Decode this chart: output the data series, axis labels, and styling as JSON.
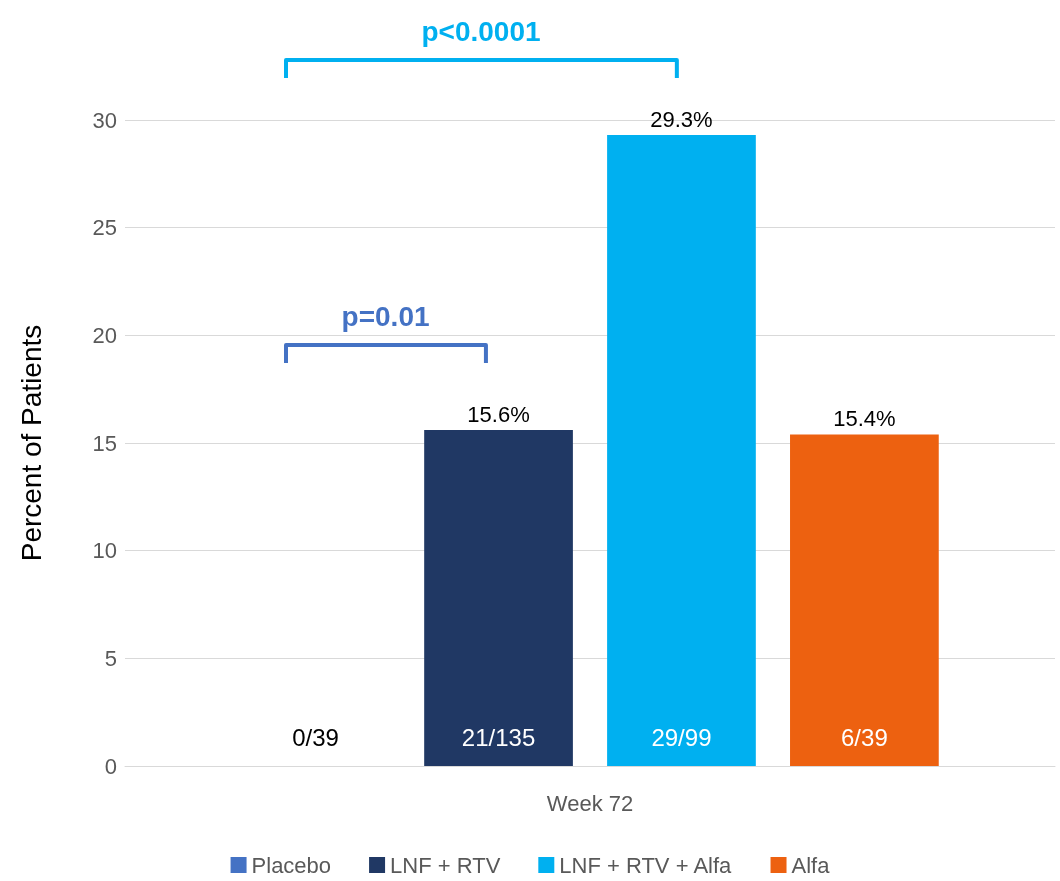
{
  "chart_data": {
    "type": "bar",
    "ylabel": "Percent of Patients",
    "categories": [
      "Week 72"
    ],
    "series": [
      {
        "name": "Placebo",
        "color": "#4472c4",
        "values": [
          0
        ],
        "value_labels": [
          null
        ]
      },
      {
        "name": "LNF + RTV",
        "color": "#203864",
        "values": [
          15.6
        ],
        "value_labels": [
          "15.6%"
        ]
      },
      {
        "name": "LNF + RTV + Alfa",
        "color": "#00b0f0",
        "values": [
          29.3
        ],
        "value_labels": [
          "29.3%"
        ]
      },
      {
        "name": "Alfa",
        "color": "#ed6110",
        "values": [
          15.4
        ],
        "value_labels": [
          "15.4%"
        ]
      }
    ],
    "ylim": [
      0,
      30
    ],
    "yticks": [
      0,
      5,
      10,
      15,
      20,
      25,
      30
    ],
    "grid": "y",
    "legend": "bottom",
    "annotations": [
      "0/39",
      "21/135",
      "29/99",
      "6/39",
      "p=0.01",
      "p<0.0001"
    ]
  }
}
